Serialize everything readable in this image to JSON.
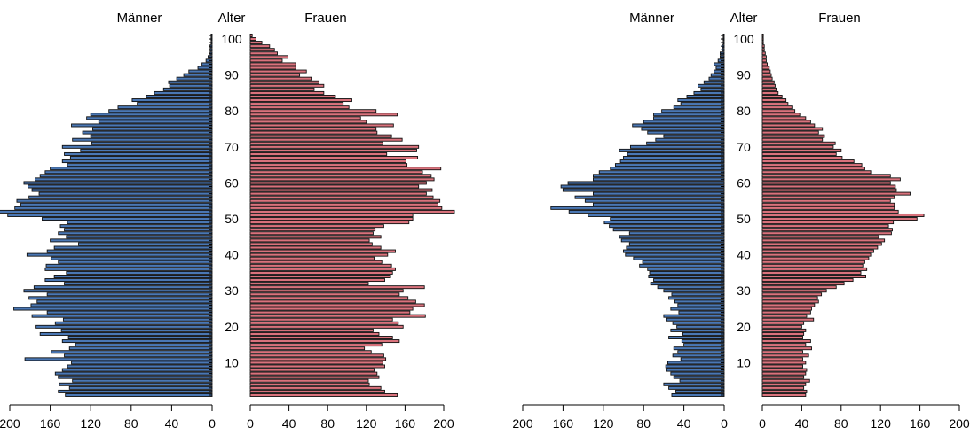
{
  "chart_data": [
    {
      "type": "bar",
      "orientation": "horizontal",
      "layout": "population-pyramid",
      "header_left": "Männer",
      "header_center": "Alter",
      "header_right": "Frauen",
      "x_ticks": [
        0,
        40,
        80,
        120,
        160,
        200
      ],
      "xlim": [
        0,
        200
      ],
      "age_ticks": [
        10,
        20,
        30,
        40,
        50,
        60,
        70,
        80,
        90,
        100
      ],
      "age_range": [
        1,
        101
      ],
      "colors": {
        "left": "#4a77b4",
        "right": "#d9727c",
        "edge": "#111111"
      },
      "series": [
        {
          "name": "Männer",
          "age_start": 1,
          "values": [
            145,
            152,
            141,
            151,
            138,
            152,
            155,
            148,
            143,
            139,
            185,
            146,
            159,
            141,
            135,
            148,
            142,
            170,
            149,
            174,
            155,
            147,
            178,
            163,
            196,
            179,
            173,
            181,
            163,
            186,
            176,
            146,
            165,
            156,
            144,
            165,
            164,
            152,
            159,
            183,
            163,
            156,
            132,
            160,
            144,
            152,
            146,
            150,
            143,
            168,
            202,
            218,
            195,
            189,
            193,
            181,
            171,
            178,
            182,
            186,
            175,
            170,
            165,
            160,
            143,
            148,
            140,
            146,
            130,
            148,
            119,
            138,
            120,
            128,
            118,
            139,
            112,
            124,
            120,
            102,
            93,
            74,
            79,
            65,
            57,
            48,
            42,
            43,
            35,
            28,
            23,
            14,
            10,
            6,
            4,
            2,
            2,
            2,
            1,
            1,
            1
          ]
        },
        {
          "name": "Frauen",
          "age_start": 1,
          "values": [
            152,
            139,
            135,
            123,
            122,
            133,
            131,
            128,
            139,
            137,
            140,
            138,
            125,
            118,
            136,
            154,
            147,
            133,
            127,
            158,
            153,
            147,
            181,
            165,
            168,
            180,
            171,
            163,
            154,
            158,
            180,
            122,
            139,
            145,
            147,
            150,
            146,
            136,
            128,
            142,
            150,
            135,
            126,
            123,
            135,
            127,
            129,
            138,
            164,
            168,
            168,
            211,
            198,
            194,
            196,
            189,
            182,
            188,
            174,
            182,
            190,
            187,
            178,
            197,
            162,
            161,
            173,
            141,
            172,
            174,
            137,
            157,
            146,
            131,
            130,
            148,
            120,
            114,
            152,
            130,
            102,
            96,
            105,
            88,
            76,
            66,
            76,
            71,
            63,
            51,
            58,
            47,
            47,
            33,
            39,
            28,
            25,
            20,
            12,
            6,
            2
          ]
        }
      ]
    },
    {
      "type": "bar",
      "orientation": "horizontal",
      "layout": "population-pyramid",
      "header_left": "Männer",
      "header_center": "Alter",
      "header_right": "Frauen",
      "x_ticks": [
        0,
        40,
        80,
        120,
        160,
        200
      ],
      "xlim": [
        0,
        200
      ],
      "age_ticks": [
        10,
        20,
        30,
        40,
        50,
        60,
        70,
        80,
        90,
        100
      ],
      "age_range": [
        1,
        101
      ],
      "colors": {
        "left": "#4a77b4",
        "right": "#d9727c",
        "edge": "#111111"
      },
      "series": [
        {
          "name": "Männer",
          "age_start": 1,
          "values": [
            52,
            48,
            55,
            60,
            44,
            50,
            53,
            57,
            58,
            56,
            43,
            51,
            46,
            50,
            40,
            42,
            55,
            41,
            53,
            47,
            51,
            57,
            60,
            45,
            53,
            46,
            49,
            55,
            52,
            60,
            66,
            73,
            70,
            75,
            74,
            76,
            84,
            81,
            90,
            98,
            100,
            97,
            94,
            102,
            104,
            94,
            110,
            114,
            119,
            113,
            135,
            154,
            172,
            130,
            138,
            148,
            130,
            160,
            162,
            155,
            130,
            130,
            124,
            113,
            108,
            103,
            100,
            96,
            104,
            93,
            77,
            68,
            60,
            76,
            82,
            91,
            80,
            70,
            70,
            62,
            50,
            43,
            46,
            37,
            30,
            23,
            26,
            20,
            15,
            13,
            10,
            8,
            10,
            6,
            4,
            4,
            2,
            2,
            1,
            1,
            1
          ]
        },
        {
          "name": "Frauen",
          "age_start": 1,
          "values": [
            44,
            45,
            42,
            44,
            48,
            42,
            44,
            45,
            41,
            44,
            41,
            47,
            41,
            50,
            44,
            49,
            41,
            42,
            44,
            40,
            42,
            52,
            45,
            49,
            50,
            53,
            57,
            56,
            60,
            65,
            75,
            83,
            92,
            105,
            100,
            106,
            102,
            104,
            108,
            110,
            113,
            117,
            121,
            124,
            118,
            131,
            132,
            128,
            133,
            157,
            164,
            138,
            134,
            134,
            130,
            134,
            150,
            136,
            135,
            130,
            140,
            130,
            110,
            104,
            101,
            93,
            81,
            75,
            80,
            72,
            74,
            61,
            63,
            57,
            61,
            53,
            49,
            44,
            38,
            33,
            30,
            26,
            24,
            20,
            16,
            14,
            13,
            12,
            10,
            9,
            8,
            7,
            5,
            4,
            4,
            3,
            2,
            2,
            1,
            1,
            1
          ]
        }
      ]
    }
  ]
}
